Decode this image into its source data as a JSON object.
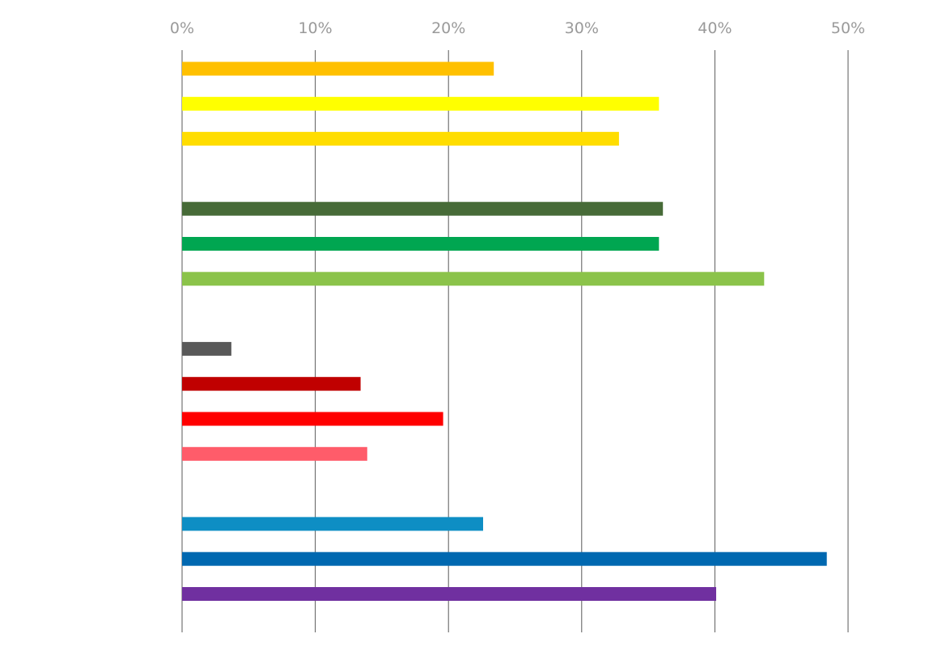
{
  "chart_data": {
    "type": "bar",
    "orientation": "horizontal",
    "title": "",
    "xlabel": "",
    "ylabel": "",
    "xlim": [
      0,
      50
    ],
    "x_ticks": [
      "0%",
      "10%",
      "20%",
      "30%",
      "40%",
      "50%"
    ],
    "x_tick_values": [
      0,
      10,
      20,
      30,
      40,
      50
    ],
    "grid": "vertical",
    "legend": "none",
    "groups": [
      {
        "bars": [
          {
            "value": 23.4,
            "color": "#FFC000"
          },
          {
            "value": 35.8,
            "color": "#FFFF00"
          },
          {
            "value": 32.8,
            "color": "#FFDD00"
          }
        ]
      },
      {
        "bars": [
          {
            "value": 36.1,
            "color": "#476B38"
          },
          {
            "value": 35.8,
            "color": "#00A651"
          },
          {
            "value": 43.7,
            "color": "#8BC34A"
          }
        ]
      },
      {
        "bars": [
          {
            "value": 3.7,
            "color": "#595959"
          },
          {
            "value": 13.4,
            "color": "#C00000"
          },
          {
            "value": 19.6,
            "color": "#FF0000"
          },
          {
            "value": 13.9,
            "color": "#FF5C6A"
          }
        ]
      },
      {
        "bars": [
          {
            "value": 22.6,
            "color": "#0E8EC4"
          },
          {
            "value": 48.4,
            "color": "#0068B0"
          },
          {
            "value": 40.1,
            "color": "#7030A0"
          }
        ]
      }
    ]
  }
}
